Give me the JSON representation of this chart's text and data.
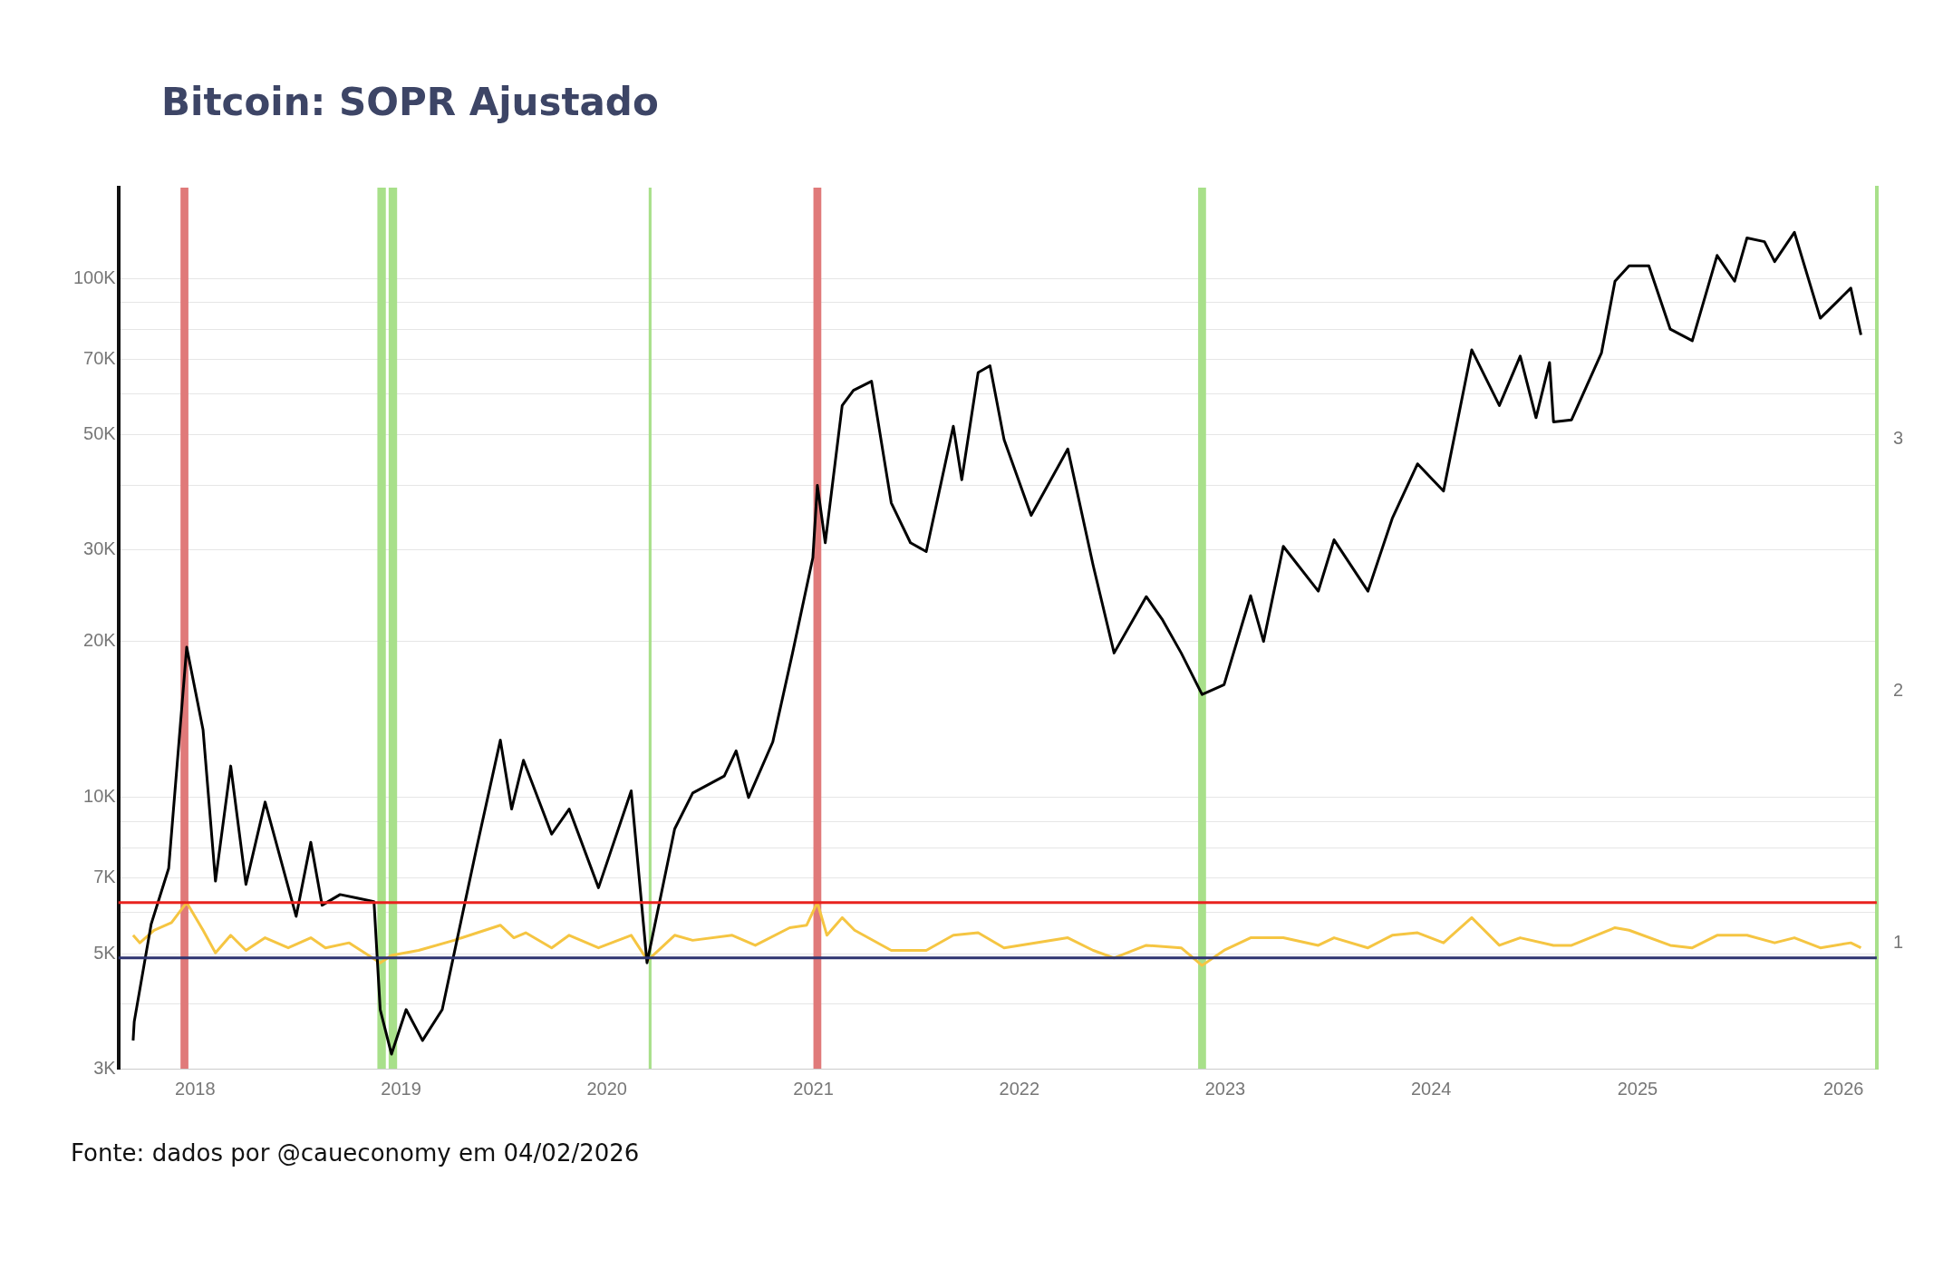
{
  "chart_data": {
    "type": "line",
    "title": "Bitcoin: SOPR Ajustado",
    "annotations": [
      "Fonte: dados por @caueconomy em 04/02/2026"
    ],
    "xlim": [
      "2017-08-18",
      "2026-03-01"
    ],
    "xticks": [
      "2018",
      "2019",
      "2020",
      "2021",
      "2022",
      "2023",
      "2024",
      "2025",
      "2026"
    ],
    "ylim": [
      3000,
      150000
    ],
    "yticks": [
      {
        "value": 3000,
        "label": "3K"
      },
      {
        "value": 4000,
        "label": null
      },
      {
        "value": 5000,
        "label": "5K"
      },
      {
        "value": 6000,
        "label": null
      },
      {
        "value": 7000,
        "label": "7K"
      },
      {
        "value": 8000,
        "label": null
      },
      {
        "value": 9000,
        "label": null
      },
      {
        "value": 10000,
        "label": "10K"
      },
      {
        "value": 20000,
        "label": "20K"
      },
      {
        "value": 30000,
        "label": "30K"
      },
      {
        "value": 40000,
        "label": null
      },
      {
        "value": 50000,
        "label": "50K"
      },
      {
        "value": 60000,
        "label": null
      },
      {
        "value": 70000,
        "label": "70K"
      },
      {
        "value": 80000,
        "label": null
      },
      {
        "value": 90000,
        "label": null
      },
      {
        "value": 100000,
        "label": "100K"
      }
    ],
    "y2lim": [
      0.5,
      4
    ],
    "y2ticks": [
      1,
      2,
      3
    ],
    "log": "y",
    "grid": "y",
    "legend": false,
    "marker": "none",
    "line_style": "solid",
    "series": [
      {
        "color": "#000000",
        "x": [
          "2017-09-13",
          "2017-09-15",
          "2017-10-15",
          "2017-11-15",
          "2017-12-17",
          "2018-01-15",
          "2018-02-06",
          "2018-03-05",
          "2018-04-01",
          "2018-05-05",
          "2018-06-29",
          "2018-07-25",
          "2018-08-14",
          "2018-09-15",
          "2018-10-15",
          "2018-11-14",
          "2018-11-25",
          "2018-12-15",
          "2019-01-10",
          "2019-02-08",
          "2019-03-15",
          "2019-04-05",
          "2019-05-15",
          "2019-06-26",
          "2019-07-16",
          "2019-08-06",
          "2019-09-25",
          "2019-10-26",
          "2019-12-17",
          "2020-02-13",
          "2020-03-12",
          "2020-04-30",
          "2020-06-01",
          "2020-07-27",
          "2020-08-17",
          "2020-09-08",
          "2020-10-21",
          "2020-11-25",
          "2020-12-31",
          "2021-01-08",
          "2021-01-22",
          "2021-02-21",
          "2021-03-13",
          "2021-04-14",
          "2021-05-19",
          "2021-06-22",
          "2021-07-20",
          "2021-09-06",
          "2021-09-21",
          "2021-10-20",
          "2021-11-10",
          "2021-12-05",
          "2022-01-22",
          "2022-03-28",
          "2022-05-12",
          "2022-06-18",
          "2022-08-14",
          "2022-09-12",
          "2022-10-15",
          "2022-11-21",
          "2022-12-30",
          "2023-02-15",
          "2023-03-10",
          "2023-04-14",
          "2023-06-15",
          "2023-07-13",
          "2023-09-11",
          "2023-10-24",
          "2023-12-08",
          "2024-01-23",
          "2024-03-13",
          "2024-05-01",
          "2024-06-07",
          "2024-07-05",
          "2024-07-29",
          "2024-08-05",
          "2024-09-06",
          "2024-10-29",
          "2024-11-22",
          "2024-12-17",
          "2025-01-21",
          "2025-02-28",
          "2025-04-08",
          "2025-05-22",
          "2025-06-22",
          "2025-07-14",
          "2025-08-14",
          "2025-09-01",
          "2025-10-06",
          "2025-11-21",
          "2026-01-14",
          "2026-02-01"
        ],
        "values": [
          3400,
          3700,
          5700,
          7300,
          19500,
          13500,
          6900,
          11500,
          6800,
          9800,
          5900,
          8200,
          6200,
          6500,
          6400,
          6300,
          3900,
          3200,
          3900,
          3400,
          3900,
          5000,
          8000,
          12900,
          9500,
          11800,
          8500,
          9500,
          6700,
          10300,
          4800,
          8700,
          10200,
          11000,
          12300,
          10000,
          12800,
          19000,
          29000,
          40000,
          31000,
          57000,
          61000,
          63500,
          37000,
          31000,
          29800,
          52000,
          41000,
          66000,
          68000,
          49000,
          35000,
          47000,
          28000,
          19000,
          24400,
          22000,
          19000,
          15800,
          16500,
          24500,
          20000,
          30500,
          25000,
          31400,
          25000,
          34500,
          44000,
          39000,
          73000,
          57000,
          71000,
          54000,
          69000,
          53000,
          53500,
          72000,
          99000,
          106000,
          106000,
          80000,
          76000,
          111000,
          99000,
          120000,
          118000,
          108000,
          123000,
          84000,
          96000,
          78000
        ]
      },
      {
        "color": "#f5c542",
        "axis": "y2",
        "x": [
          "2017-09-13",
          "2017-09-25",
          "2017-10-20",
          "2017-11-20",
          "2017-12-17",
          "2018-01-15",
          "2018-02-06",
          "2018-03-05",
          "2018-04-01",
          "2018-05-05",
          "2018-06-15",
          "2018-07-25",
          "2018-08-20",
          "2018-10-01",
          "2018-11-25",
          "2018-12-15",
          "2019-02-01",
          "2019-04-05",
          "2019-06-26",
          "2019-07-20",
          "2019-08-10",
          "2019-09-25",
          "2019-10-26",
          "2019-12-17",
          "2020-02-13",
          "2020-03-13",
          "2020-04-30",
          "2020-06-01",
          "2020-08-10",
          "2020-09-20",
          "2020-11-20",
          "2020-12-20",
          "2021-01-08",
          "2021-01-25",
          "2021-02-21",
          "2021-03-15",
          "2021-05-19",
          "2021-07-20",
          "2021-09-06",
          "2021-10-20",
          "2021-12-05",
          "2022-03-28",
          "2022-05-12",
          "2022-06-18",
          "2022-08-14",
          "2022-10-15",
          "2022-11-21",
          "2022-12-30",
          "2023-02-15",
          "2023-04-14",
          "2023-06-15",
          "2023-07-13",
          "2023-09-11",
          "2023-10-24",
          "2023-12-08",
          "2024-01-23",
          "2024-03-13",
          "2024-05-01",
          "2024-06-07",
          "2024-08-05",
          "2024-09-06",
          "2024-11-22",
          "2024-12-17",
          "2025-02-28",
          "2025-04-08",
          "2025-05-22",
          "2025-07-14",
          "2025-09-01",
          "2025-10-06",
          "2025-11-21",
          "2026-01-14",
          "2026-02-01"
        ],
        "values": [
          1.03,
          1.0,
          1.05,
          1.08,
          1.16,
          1.05,
          0.96,
          1.03,
          0.97,
          1.02,
          0.98,
          1.02,
          0.98,
          1.0,
          0.92,
          0.95,
          0.97,
          1.01,
          1.07,
          1.02,
          1.04,
          0.98,
          1.03,
          0.98,
          1.03,
          0.93,
          1.03,
          1.01,
          1.03,
          0.99,
          1.06,
          1.07,
          1.16,
          1.03,
          1.1,
          1.05,
          0.97,
          0.97,
          1.03,
          1.04,
          0.98,
          1.02,
          0.97,
          0.94,
          0.99,
          0.98,
          0.91,
          0.97,
          1.02,
          1.02,
          0.99,
          1.02,
          0.98,
          1.03,
          1.04,
          1.0,
          1.1,
          0.99,
          1.02,
          0.99,
          0.99,
          1.06,
          1.05,
          0.99,
          0.98,
          1.03,
          1.03,
          1.0,
          1.02,
          0.98,
          1.0,
          0.98
        ]
      }
    ],
    "ref_lines": [
      {
        "axis": "y2",
        "value": 1.16,
        "color": "#e8231e"
      },
      {
        "axis": "y2",
        "value": 0.94,
        "color": "#2e3470"
      }
    ],
    "bands": [
      {
        "axis": "x",
        "from": "2017-12-06",
        "to": "2017-12-20",
        "color": "#e07a7a"
      },
      {
        "axis": "x",
        "from": "2018-11-20",
        "to": "2018-12-05",
        "color": "#a8e08a"
      },
      {
        "axis": "x",
        "from": "2018-12-10",
        "to": "2018-12-25",
        "color": "#a8e08a"
      },
      {
        "axis": "x",
        "from": "2020-03-15",
        "to": "2020-03-20",
        "color": "#a8e08a"
      },
      {
        "axis": "x",
        "from": "2021-01-01",
        "to": "2021-01-15",
        "color": "#e07a7a"
      },
      {
        "axis": "x",
        "from": "2022-11-14",
        "to": "2022-11-28",
        "color": "#a8e08a"
      }
    ]
  }
}
